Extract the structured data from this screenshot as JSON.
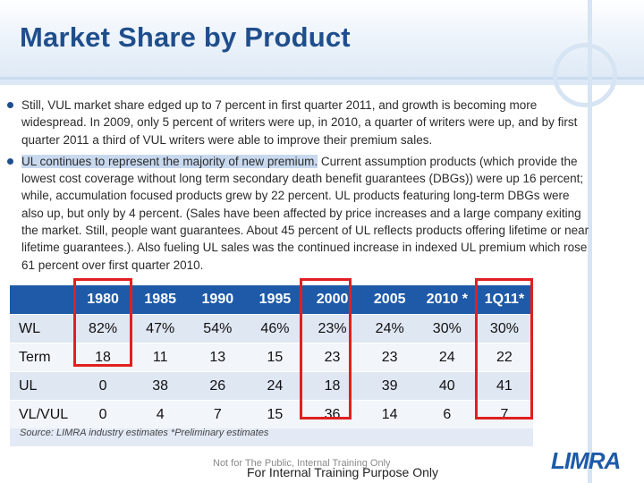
{
  "title": "Market Share by Product",
  "bullets": [
    {
      "text": "Still, VUL market share edged up to 7 percent in first quarter 2011, and growth is becoming more widespread. In 2009, only 5 percent of writers were up, in 2010, a quarter of writers were up, and by first quarter 2011 a third of VUL writers were able to improve their premium sales."
    },
    {
      "highlight": "UL continues to represent the majority of new premium.",
      "text": " Current assumption products (which provide the lowest cost coverage without long term secondary death benefit guarantees (DBGs)) were up 16 percent; while, accumulation focused products grew by 22 percent. UL products featuring long-term DBGs were also up, but only by 4 percent. (Sales have been affected by price increases and a large company exiting the market. Still, people want guarantees. About 45 percent of UL reflects products offering lifetime or near lifetime guarantees.). Also fueling UL sales was the continued increase in indexed UL premium which rose 61 percent over first quarter 2010."
    }
  ],
  "table": {
    "columns": [
      "",
      "1980",
      "1985",
      "1990",
      "1995",
      "2000",
      "2005",
      "2010 *",
      "1Q11*"
    ],
    "rows": [
      [
        "WL",
        "82%",
        "47%",
        "54%",
        "46%",
        "23%",
        "24%",
        "30%",
        "30%"
      ],
      [
        "Term",
        "18",
        "11",
        "13",
        "15",
        "23",
        "23",
        "24",
        "22"
      ],
      [
        "UL",
        "0",
        "38",
        "26",
        "24",
        "18",
        "39",
        "40",
        "41"
      ],
      [
        "VL/VUL",
        "0",
        "4",
        "7",
        "15",
        "36",
        "14",
        "6",
        "7"
      ]
    ],
    "source": "Source: LIMRA industry estimates   *Preliminary estimates"
  },
  "footer": {
    "notice": "Not for The Public, Internal Training Only",
    "purpose": "For Internal Training Purpose Only"
  },
  "logo_text": "LIMRA",
  "colors": {
    "title": "#1f4e8c",
    "header": "#1e5aa8",
    "highlight_box": "#e02020"
  }
}
